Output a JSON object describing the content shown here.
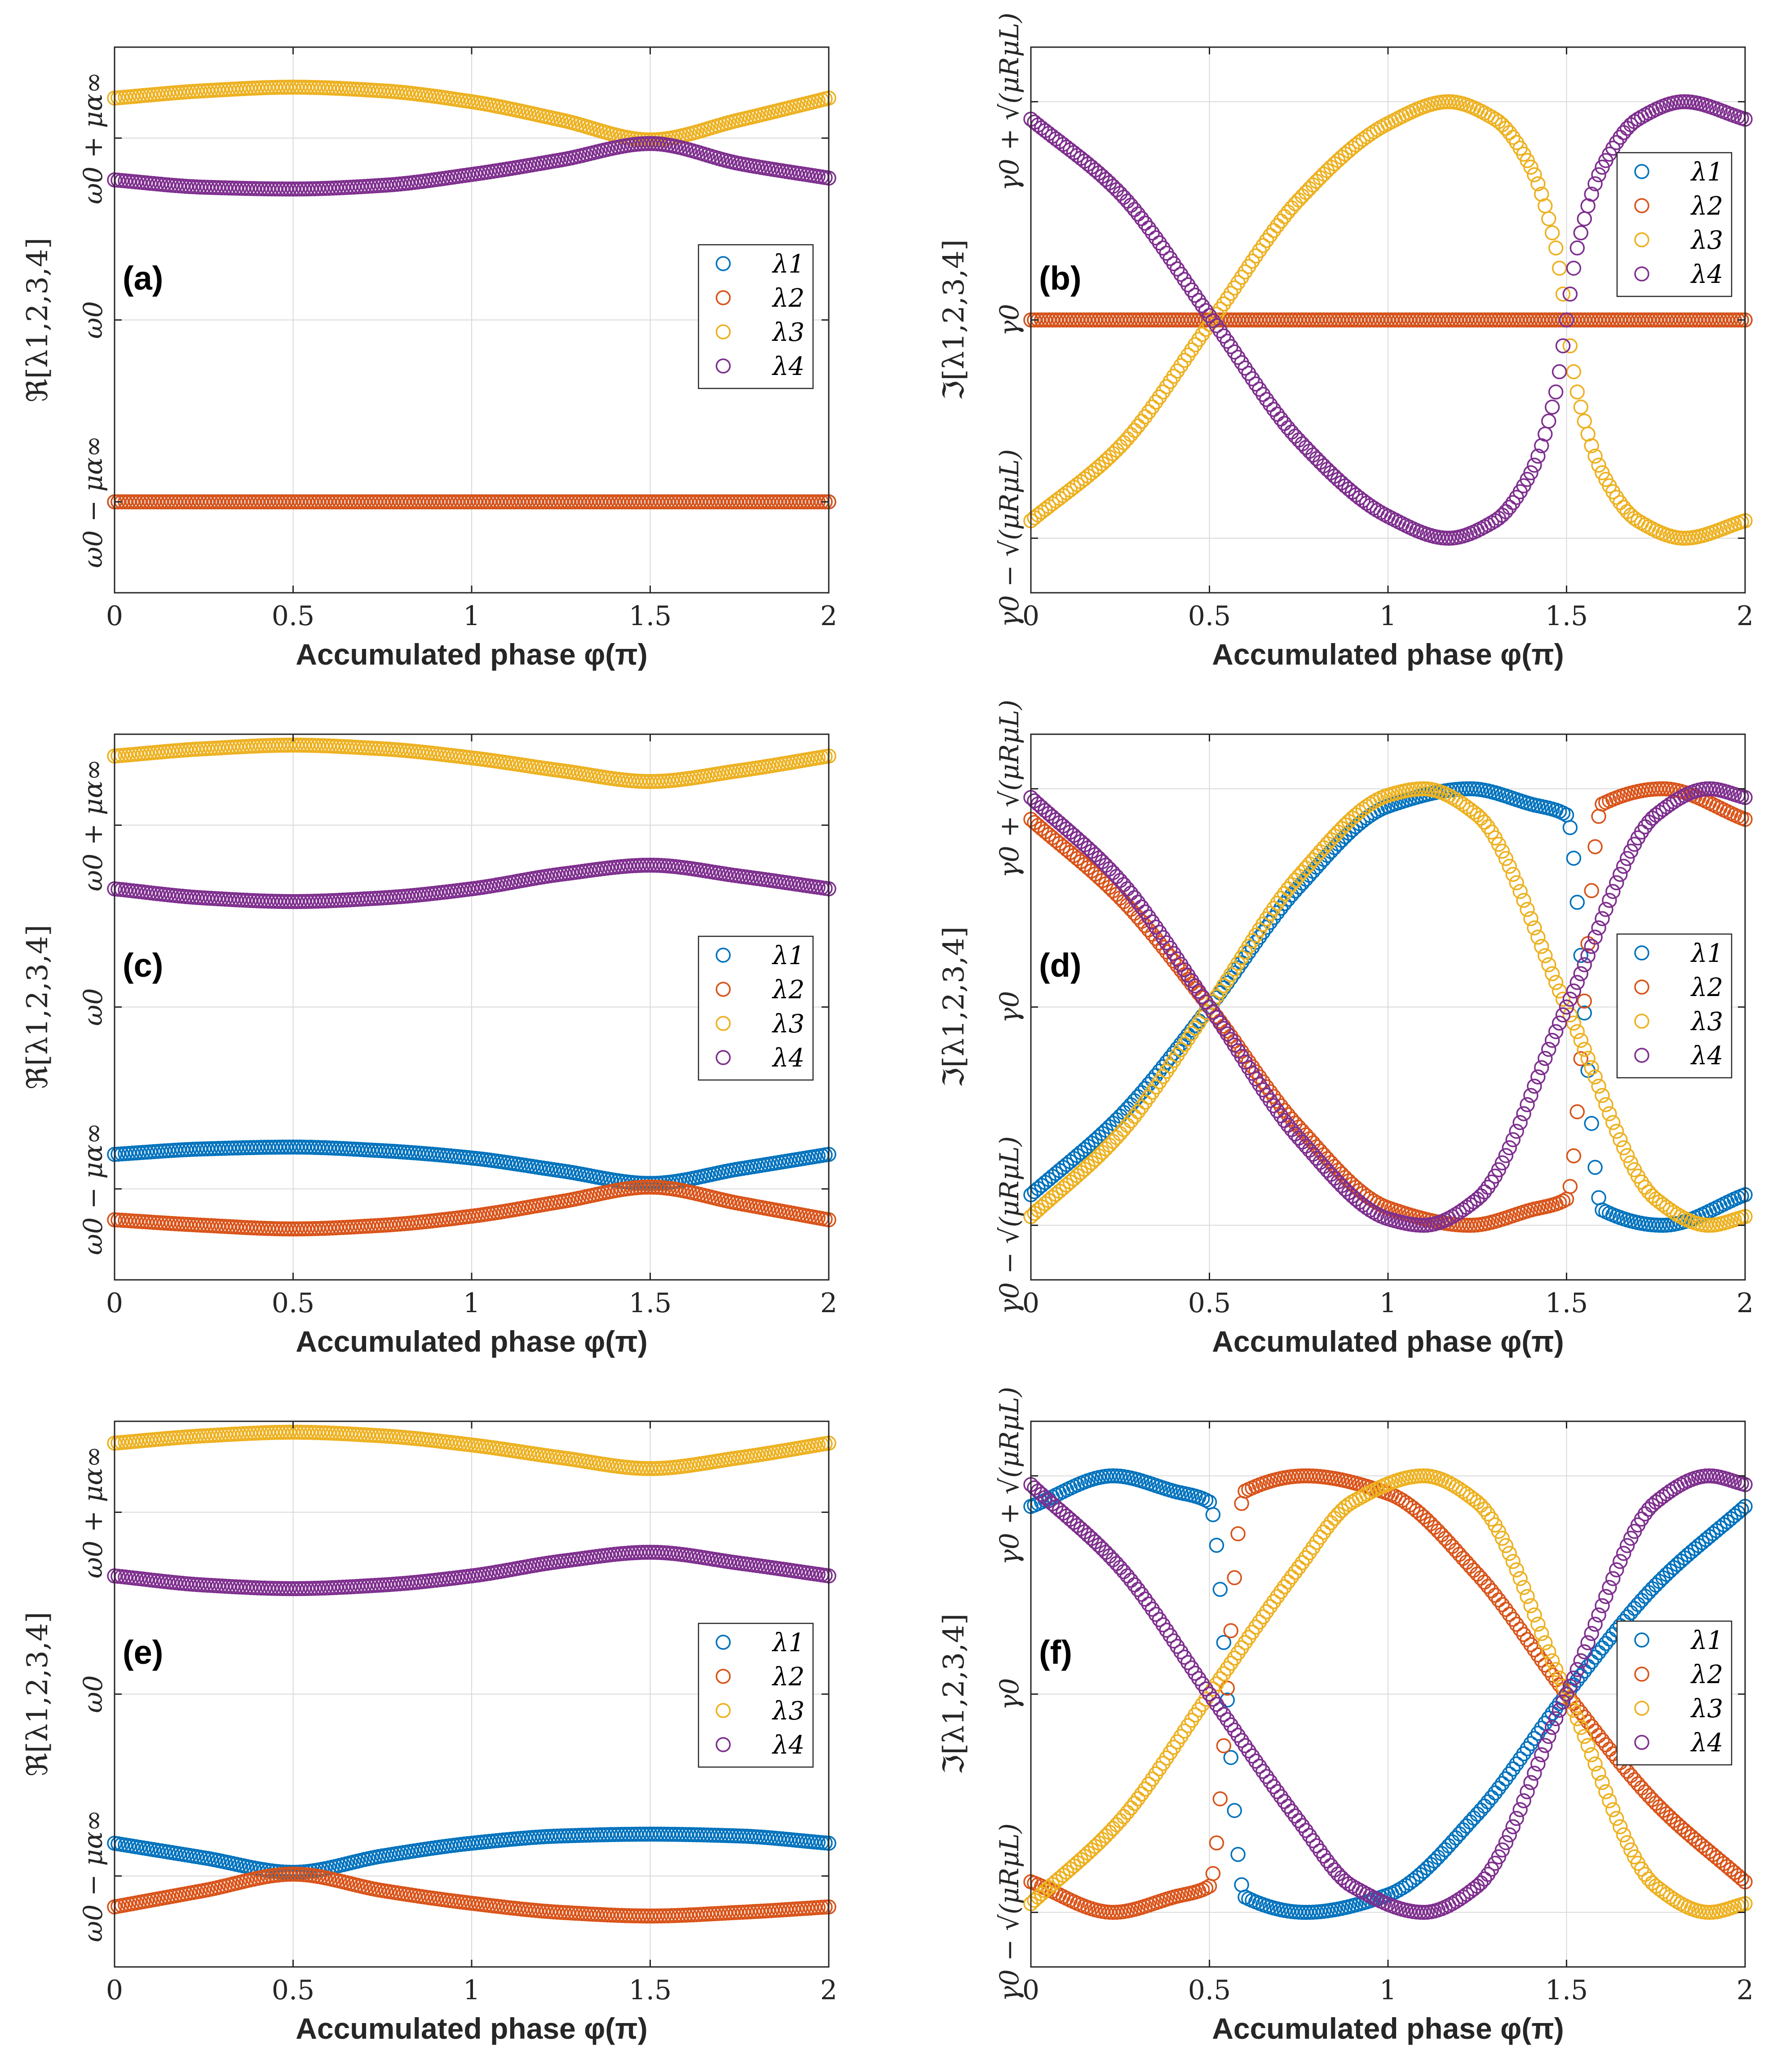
{
  "chart_data": [
    {
      "id": "a",
      "type": "scatter",
      "panel_label": "(a)",
      "xlabel": "Accumulated phase φ(π)",
      "ylabel": "ℜ[λ1,2,3,4]",
      "xlim": [
        0,
        2
      ],
      "ylim": [
        -1.5,
        1.5
      ],
      "xticks": [
        0,
        0.5,
        1,
        1.5,
        2
      ],
      "xtick_labels": [
        "0",
        "0.5",
        "1",
        "1.5",
        "2"
      ],
      "yticks": [
        -1,
        0,
        1
      ],
      "ytick_labels": [
        "ω0 − μα∞",
        "ω0",
        "ω0 + μα∞"
      ],
      "legend": [
        "λ1",
        "λ2",
        "λ3",
        "λ4"
      ],
      "legend_position": "right-middle",
      "series": [
        {
          "name": "λ1",
          "color": "#0072BD",
          "x": [
            0,
            0.5,
            1,
            1.5,
            2
          ],
          "y": [
            -1,
            -1,
            -1,
            -1,
            -1
          ]
        },
        {
          "name": "λ2",
          "color": "#D95319",
          "x": [
            0,
            0.5,
            1,
            1.5,
            2
          ],
          "y": [
            -1,
            -1,
            -1,
            -1,
            -1
          ]
        },
        {
          "name": "λ3",
          "color": "#EDB120",
          "x": [
            0,
            0.25,
            0.5,
            0.75,
            1,
            1.25,
            1.5,
            1.75,
            2
          ],
          "y": [
            1.22,
            1.26,
            1.28,
            1.26,
            1.2,
            1.1,
            0.99,
            1.1,
            1.22
          ]
        },
        {
          "name": "λ4",
          "color": "#7E2F8E",
          "x": [
            0,
            0.25,
            0.5,
            0.75,
            1,
            1.25,
            1.5,
            1.75,
            2
          ],
          "y": [
            0.77,
            0.73,
            0.72,
            0.74,
            0.8,
            0.88,
            0.97,
            0.86,
            0.78
          ]
        }
      ]
    },
    {
      "id": "b",
      "type": "scatter",
      "panel_label": "(b)",
      "xlabel": "Accumulated phase φ(π)",
      "ylabel": "ℑ[λ1,2,3,4]",
      "xlim": [
        0,
        2
      ],
      "ylim": [
        -1.25,
        1.25
      ],
      "xticks": [
        0,
        0.5,
        1,
        1.5,
        2
      ],
      "xtick_labels": [
        "0",
        "0.5",
        "1",
        "1.5",
        "2"
      ],
      "yticks": [
        -1,
        0,
        1
      ],
      "ytick_labels": [
        "γ0 − √(μRμL)",
        "γ0",
        "γ0 + √(μRμL)"
      ],
      "legend": [
        "λ1",
        "λ2",
        "λ3",
        "λ4"
      ],
      "legend_position": "top-right",
      "series": [
        {
          "name": "λ1",
          "color": "#0072BD",
          "x": [
            0,
            0.5,
            1,
            1.5,
            2
          ],
          "y": [
            0,
            0,
            0,
            0,
            0
          ]
        },
        {
          "name": "λ2",
          "color": "#D95319",
          "x": [
            0,
            0.5,
            1,
            1.5,
            2
          ],
          "y": [
            0,
            0,
            0,
            0,
            0
          ]
        },
        {
          "name": "λ3",
          "color": "#EDB120",
          "x": [
            0,
            0.25,
            0.5,
            0.75,
            1,
            1.17,
            1.3,
            1.4,
            1.47,
            1.5,
            1.53,
            1.6,
            1.7,
            1.83,
            2
          ],
          "y": [
            -0.92,
            -0.58,
            -0.02,
            0.55,
            0.9,
            1.0,
            0.92,
            0.7,
            0.33,
            0,
            -0.33,
            -0.7,
            -0.92,
            -1.0,
            -0.92
          ]
        },
        {
          "name": "λ4",
          "color": "#7E2F8E",
          "x": [
            0,
            0.25,
            0.5,
            0.75,
            1,
            1.17,
            1.3,
            1.4,
            1.47,
            1.5,
            1.53,
            1.6,
            1.7,
            1.83,
            2
          ],
          "y": [
            0.92,
            0.58,
            0.02,
            -0.55,
            -0.9,
            -1.0,
            -0.92,
            -0.7,
            -0.33,
            0,
            0.33,
            0.7,
            0.92,
            1.0,
            0.92
          ]
        }
      ]
    },
    {
      "id": "c",
      "type": "scatter",
      "panel_label": "(c)",
      "xlabel": "Accumulated phase φ(π)",
      "ylabel": "ℜ[λ1,2,3,4]",
      "xlim": [
        0,
        2
      ],
      "ylim": [
        -1.5,
        1.5
      ],
      "xticks": [
        0,
        0.5,
        1,
        1.5,
        2
      ],
      "xtick_labels": [
        "0",
        "0.5",
        "1",
        "1.5",
        "2"
      ],
      "yticks": [
        -1,
        0,
        1
      ],
      "ytick_labels": [
        "ω0 − μα∞",
        "ω0",
        "ω0 + μα∞"
      ],
      "legend": [
        "λ1",
        "λ2",
        "λ3",
        "λ4"
      ],
      "legend_position": "right-middle",
      "series": [
        {
          "name": "λ1",
          "color": "#0072BD",
          "x": [
            0,
            0.25,
            0.5,
            0.75,
            1,
            1.25,
            1.5,
            1.75,
            2
          ],
          "y": [
            -0.81,
            -0.78,
            -0.77,
            -0.79,
            -0.83,
            -0.9,
            -0.97,
            -0.89,
            -0.81
          ]
        },
        {
          "name": "λ2",
          "color": "#D95319",
          "x": [
            0,
            0.25,
            0.5,
            0.75,
            1,
            1.25,
            1.5,
            1.75,
            2
          ],
          "y": [
            -1.17,
            -1.2,
            -1.22,
            -1.2,
            -1.15,
            -1.07,
            -0.99,
            -1.08,
            -1.17
          ]
        },
        {
          "name": "λ3",
          "color": "#EDB120",
          "x": [
            0,
            0.25,
            0.5,
            0.75,
            1,
            1.25,
            1.5,
            1.75,
            2
          ],
          "y": [
            1.38,
            1.42,
            1.44,
            1.42,
            1.37,
            1.3,
            1.24,
            1.3,
            1.38
          ]
        },
        {
          "name": "λ4",
          "color": "#7E2F8E",
          "x": [
            0,
            0.25,
            0.5,
            0.75,
            1,
            1.25,
            1.5,
            1.75,
            2
          ],
          "y": [
            0.65,
            0.6,
            0.58,
            0.6,
            0.65,
            0.73,
            0.78,
            0.72,
            0.65
          ]
        }
      ]
    },
    {
      "id": "d",
      "type": "scatter",
      "panel_label": "(d)",
      "xlabel": "Accumulated phase φ(π)",
      "ylabel": "ℑ[λ1,2,3,4]",
      "xlim": [
        0,
        2
      ],
      "ylim": [
        -1.25,
        1.25
      ],
      "xticks": [
        0,
        0.5,
        1,
        1.5,
        2
      ],
      "xtick_labels": [
        "0",
        "0.5",
        "1",
        "1.5",
        "2"
      ],
      "yticks": [
        -1,
        0,
        1
      ],
      "ytick_labels": [
        "γ0 − √(μRμL)",
        "γ0",
        "γ0 + √(μRμL)"
      ],
      "legend": [
        "λ1",
        "λ2",
        "λ3",
        "λ4"
      ],
      "legend_position": "right-middle",
      "series": [
        {
          "name": "λ1",
          "color": "#0072BD",
          "x": [
            0,
            0.25,
            0.5,
            0.75,
            1,
            1.23,
            1.4,
            1.5,
            1.6,
            1.77,
            2
          ],
          "y": [
            -0.86,
            -0.5,
            0,
            0.55,
            0.92,
            1.0,
            0.93,
            0.88,
            -0.93,
            -1.0,
            -0.86
          ]
        },
        {
          "name": "λ2",
          "color": "#D95319",
          "x": [
            0,
            0.25,
            0.5,
            0.75,
            1,
            1.23,
            1.4,
            1.5,
            1.6,
            1.77,
            2
          ],
          "y": [
            0.86,
            0.5,
            0,
            -0.55,
            -0.92,
            -1.0,
            -0.93,
            -0.88,
            0.93,
            1.0,
            0.86
          ]
        },
        {
          "name": "λ3",
          "color": "#EDB120",
          "x": [
            0,
            0.25,
            0.5,
            0.75,
            1,
            1.1,
            1.25,
            1.5,
            1.75,
            1.9,
            2
          ],
          "y": [
            -0.96,
            -0.58,
            0,
            0.6,
            0.97,
            1.0,
            0.88,
            0,
            -0.88,
            -1.0,
            -0.96
          ]
        },
        {
          "name": "λ4",
          "color": "#7E2F8E",
          "x": [
            0,
            0.25,
            0.5,
            0.75,
            1,
            1.1,
            1.25,
            1.5,
            1.75,
            1.9,
            2
          ],
          "y": [
            0.96,
            0.58,
            0,
            -0.6,
            -0.97,
            -1.0,
            -0.88,
            0,
            0.88,
            1.0,
            0.96
          ]
        }
      ]
    },
    {
      "id": "e",
      "type": "scatter",
      "panel_label": "(e)",
      "xlabel": "Accumulated phase φ(π)",
      "ylabel": "ℜ[λ1,2,3,4]",
      "xlim": [
        0,
        2
      ],
      "ylim": [
        -1.5,
        1.5
      ],
      "xticks": [
        0,
        0.5,
        1,
        1.5,
        2
      ],
      "xtick_labels": [
        "0",
        "0.5",
        "1",
        "1.5",
        "2"
      ],
      "yticks": [
        -1,
        0,
        1
      ],
      "ytick_labels": [
        "ω0 − μα∞",
        "ω0",
        "ω0 + μα∞"
      ],
      "legend": [
        "λ1",
        "λ2",
        "λ3",
        "λ4"
      ],
      "legend_position": "right-middle",
      "series": [
        {
          "name": "λ1",
          "color": "#0072BD",
          "x": [
            0,
            0.25,
            0.5,
            0.75,
            1,
            1.25,
            1.5,
            1.75,
            2
          ],
          "y": [
            -0.82,
            -0.9,
            -0.98,
            -0.89,
            -0.82,
            -0.78,
            -0.77,
            -0.78,
            -0.82
          ]
        },
        {
          "name": "λ2",
          "color": "#D95319",
          "x": [
            0,
            0.25,
            0.5,
            0.75,
            1,
            1.25,
            1.5,
            1.75,
            2
          ],
          "y": [
            -1.17,
            -1.08,
            -0.99,
            -1.08,
            -1.15,
            -1.2,
            -1.22,
            -1.2,
            -1.17
          ]
        },
        {
          "name": "λ3",
          "color": "#EDB120",
          "x": [
            0,
            0.25,
            0.5,
            0.75,
            1,
            1.25,
            1.5,
            1.75,
            2
          ],
          "y": [
            1.38,
            1.42,
            1.44,
            1.42,
            1.37,
            1.3,
            1.24,
            1.3,
            1.38
          ]
        },
        {
          "name": "λ4",
          "color": "#7E2F8E",
          "x": [
            0,
            0.25,
            0.5,
            0.75,
            1,
            1.25,
            1.5,
            1.75,
            2
          ],
          "y": [
            0.65,
            0.6,
            0.58,
            0.6,
            0.65,
            0.73,
            0.78,
            0.72,
            0.65
          ]
        }
      ]
    },
    {
      "id": "f",
      "type": "scatter",
      "panel_label": "(f)",
      "xlabel": "Accumulated phase φ(π)",
      "ylabel": "ℑ[λ1,2,3,4]",
      "xlim": [
        0,
        2
      ],
      "ylim": [
        -1.25,
        1.25
      ],
      "xticks": [
        0,
        0.5,
        1,
        1.5,
        2
      ],
      "xtick_labels": [
        "0",
        "0.5",
        "1",
        "1.5",
        "2"
      ],
      "yticks": [
        -1,
        0,
        1
      ],
      "ytick_labels": [
        "γ0 − √(μRμL)",
        "γ0",
        "γ0 + √(μRμL)"
      ],
      "legend": [
        "λ1",
        "λ2",
        "λ3",
        "λ4"
      ],
      "legend_position": "right-middle",
      "series": [
        {
          "name": "λ1",
          "color": "#0072BD",
          "x": [
            0,
            0.23,
            0.4,
            0.5,
            0.6,
            0.77,
            1,
            1.25,
            1.5,
            1.75,
            2
          ],
          "y": [
            0.86,
            1.0,
            0.93,
            0.88,
            -0.93,
            -1.0,
            -0.92,
            -0.55,
            0,
            0.5,
            0.86
          ]
        },
        {
          "name": "λ2",
          "color": "#D95319",
          "x": [
            0,
            0.23,
            0.4,
            0.5,
            0.6,
            0.77,
            1,
            1.25,
            1.5,
            1.75,
            2
          ],
          "y": [
            -0.86,
            -1.0,
            -0.93,
            -0.88,
            0.93,
            1.0,
            0.92,
            0.55,
            0,
            -0.5,
            -0.86
          ]
        },
        {
          "name": "λ3",
          "color": "#EDB120",
          "x": [
            0,
            0.25,
            0.5,
            0.75,
            0.9,
            1.1,
            1.25,
            1.5,
            1.75,
            1.9,
            2
          ],
          "y": [
            -0.96,
            -0.58,
            0,
            0.58,
            0.88,
            1.0,
            0.88,
            0,
            -0.88,
            -1.0,
            -0.96
          ]
        },
        {
          "name": "λ4",
          "color": "#7E2F8E",
          "x": [
            0,
            0.25,
            0.5,
            0.75,
            0.9,
            1.1,
            1.25,
            1.5,
            1.75,
            1.9,
            2
          ],
          "y": [
            0.96,
            0.58,
            0,
            -0.58,
            -0.88,
            -1.0,
            -0.88,
            0,
            0.88,
            1.0,
            0.96
          ]
        }
      ]
    }
  ]
}
